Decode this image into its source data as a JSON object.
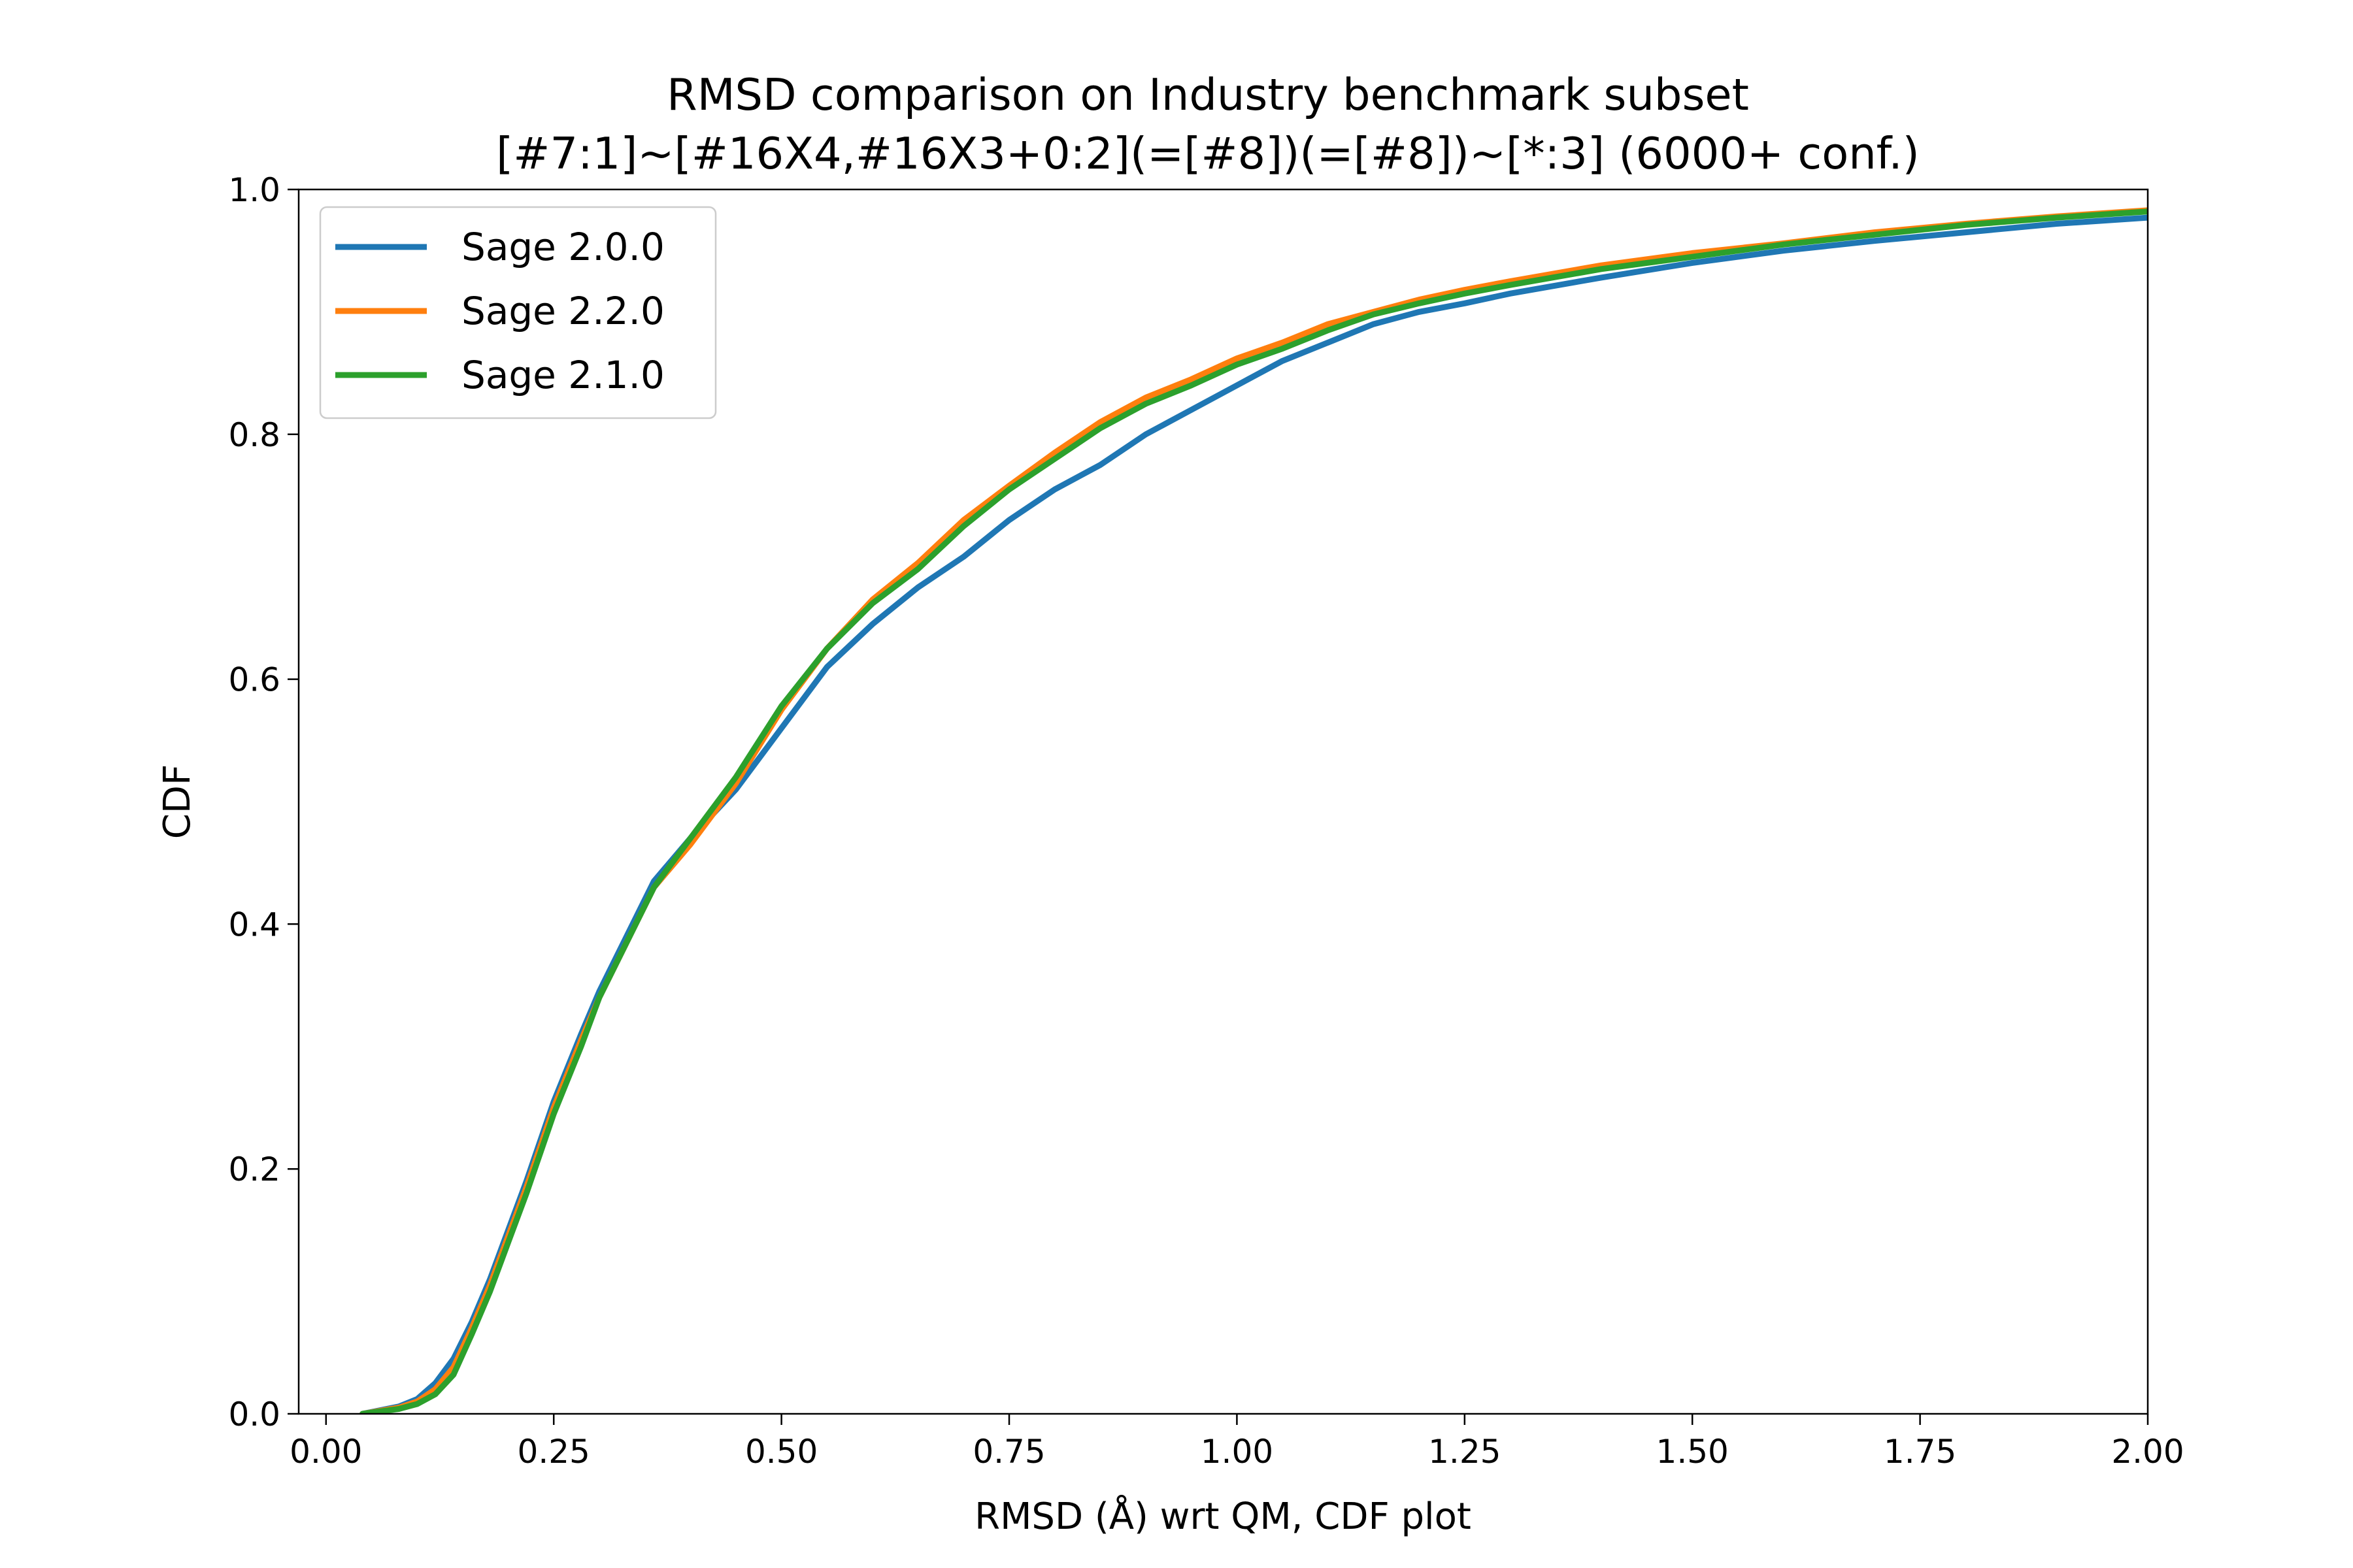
{
  "chart_data": {
    "type": "line",
    "title": "RMSD comparison on Industry benchmark subset",
    "subtitle": "[#7:1]~[#16X4,#16X3+0:2](=[#8])(=[#8])~[*:3] (6000+ conf.)",
    "xlabel": "RMSD (Å) wrt QM, CDF plot",
    "ylabel": "CDF",
    "xlim": [
      -0.03,
      2.0
    ],
    "ylim": [
      0.0,
      1.0
    ],
    "x_ticks": [
      "0.00",
      "0.25",
      "0.50",
      "0.75",
      "1.00",
      "1.25",
      "1.50",
      "1.75",
      "2.00"
    ],
    "y_ticks": [
      "0.0",
      "0.2",
      "0.4",
      "0.6",
      "0.8",
      "1.0"
    ],
    "grid": false,
    "legend_position": "upper-left",
    "series": [
      {
        "name": "Sage 2.0.0",
        "color": "#1f77b4",
        "x": [
          0.04,
          0.08,
          0.1,
          0.12,
          0.14,
          0.16,
          0.18,
          0.2,
          0.22,
          0.25,
          0.28,
          0.3,
          0.33,
          0.36,
          0.4,
          0.45,
          0.5,
          0.55,
          0.6,
          0.65,
          0.7,
          0.75,
          0.8,
          0.85,
          0.9,
          0.95,
          1.0,
          1.05,
          1.1,
          1.15,
          1.2,
          1.25,
          1.3,
          1.4,
          1.5,
          1.6,
          1.7,
          1.8,
          1.9,
          2.0
        ],
        "y": [
          0.0,
          0.006,
          0.012,
          0.025,
          0.045,
          0.075,
          0.11,
          0.15,
          0.19,
          0.255,
          0.31,
          0.345,
          0.39,
          0.435,
          0.47,
          0.51,
          0.56,
          0.61,
          0.645,
          0.675,
          0.7,
          0.73,
          0.755,
          0.775,
          0.8,
          0.82,
          0.84,
          0.86,
          0.875,
          0.89,
          0.9,
          0.907,
          0.915,
          0.928,
          0.94,
          0.95,
          0.958,
          0.965,
          0.972,
          0.977
        ]
      },
      {
        "name": "Sage 2.2.0",
        "color": "#ff7f0e",
        "x": [
          0.04,
          0.08,
          0.1,
          0.12,
          0.14,
          0.16,
          0.18,
          0.2,
          0.22,
          0.25,
          0.28,
          0.3,
          0.33,
          0.36,
          0.4,
          0.45,
          0.5,
          0.55,
          0.6,
          0.65,
          0.7,
          0.75,
          0.8,
          0.85,
          0.9,
          0.95,
          1.0,
          1.05,
          1.1,
          1.15,
          1.2,
          1.25,
          1.3,
          1.4,
          1.5,
          1.6,
          1.7,
          1.8,
          1.9,
          2.0
        ],
        "y": [
          0.0,
          0.005,
          0.01,
          0.02,
          0.038,
          0.07,
          0.105,
          0.145,
          0.185,
          0.25,
          0.305,
          0.34,
          0.385,
          0.43,
          0.465,
          0.515,
          0.575,
          0.625,
          0.665,
          0.695,
          0.73,
          0.758,
          0.785,
          0.81,
          0.83,
          0.845,
          0.862,
          0.875,
          0.89,
          0.9,
          0.91,
          0.918,
          0.925,
          0.938,
          0.948,
          0.956,
          0.965,
          0.972,
          0.978,
          0.983
        ]
      },
      {
        "name": "Sage 2.1.0",
        "color": "#2ca02c",
        "x": [
          0.04,
          0.08,
          0.1,
          0.12,
          0.14,
          0.16,
          0.18,
          0.2,
          0.22,
          0.25,
          0.28,
          0.3,
          0.33,
          0.36,
          0.4,
          0.45,
          0.5,
          0.55,
          0.6,
          0.65,
          0.7,
          0.75,
          0.8,
          0.85,
          0.9,
          0.95,
          1.0,
          1.05,
          1.1,
          1.15,
          1.2,
          1.25,
          1.3,
          1.4,
          1.5,
          1.6,
          1.7,
          1.8,
          1.9,
          2.0
        ],
        "y": [
          0.0,
          0.004,
          0.008,
          0.016,
          0.032,
          0.065,
          0.1,
          0.14,
          0.18,
          0.245,
          0.3,
          0.34,
          0.385,
          0.43,
          0.47,
          0.52,
          0.578,
          0.625,
          0.662,
          0.69,
          0.725,
          0.755,
          0.78,
          0.805,
          0.825,
          0.84,
          0.857,
          0.87,
          0.885,
          0.898,
          0.907,
          0.915,
          0.922,
          0.935,
          0.945,
          0.955,
          0.963,
          0.971,
          0.977,
          0.982
        ]
      }
    ]
  }
}
